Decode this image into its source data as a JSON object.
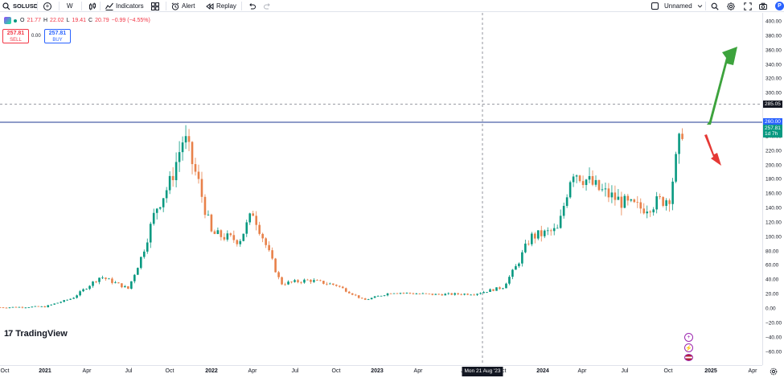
{
  "toolbar": {
    "symbol": "SOLUSD",
    "interval": "W",
    "indicators_label": "Indicators",
    "alert_label": "Alert",
    "replay_label": "Replay",
    "layout_name": "Unnamed"
  },
  "legend": {
    "open_label": "O",
    "open": "21.77",
    "high_label": "H",
    "high": "22.02",
    "low_label": "L",
    "low": "19.41",
    "close_label": "C",
    "close": "20.79",
    "change": "−0.99 (−4.55%)"
  },
  "trade": {
    "sell_price": "257.81",
    "sell_label": "SELL",
    "spread": "0.00",
    "buy_price": "257.81",
    "buy_label": "BUY"
  },
  "price_axis": {
    "ticks": [
      "400.00",
      "380.00",
      "360.00",
      "340.00",
      "320.00",
      "300.00",
      "240.00",
      "220.00",
      "200.00",
      "180.00",
      "160.00",
      "140.00",
      "120.00",
      "100.00",
      "80.00",
      "60.00",
      "40.00",
      "20.00",
      "0.00",
      "−20.00",
      "−40.00",
      "−60.00"
    ],
    "crosshair_price": "285.05",
    "line_price": "260.00",
    "last_price": "257.81",
    "countdown": "1d 7h"
  },
  "time_axis": {
    "ticks": [
      "Oct",
      "2021",
      "Apr",
      "Jul",
      "Oct",
      "2022",
      "Apr",
      "Jul",
      "Oct",
      "2023",
      "Apr",
      "Ju",
      "Oct",
      "2024",
      "Apr",
      "Jul",
      "Oct",
      "2025",
      "Apr"
    ],
    "cursor_label": "Mon 21 Aug '23"
  },
  "branding": {
    "logo_text": "TradingView"
  },
  "colors": {
    "up": "#089981",
    "down": "#e8814a",
    "horizontal_line": "#1f3a93",
    "arrow_up": "#3da33d",
    "arrow_down": "#e53935"
  },
  "chart_data": {
    "type": "candlestick",
    "symbol": "SOLUSD",
    "interval": "W",
    "ylim": [
      -60,
      400
    ],
    "close_series_approx": [
      {
        "date": "2020-10",
        "value": 2
      },
      {
        "date": "2021-01",
        "value": 3
      },
      {
        "date": "2021-03",
        "value": 15
      },
      {
        "date": "2021-05",
        "value": 45
      },
      {
        "date": "2021-07",
        "value": 28
      },
      {
        "date": "2021-08",
        "value": 75
      },
      {
        "date": "2021-09",
        "value": 140
      },
      {
        "date": "2021-10",
        "value": 175
      },
      {
        "date": "2021-11",
        "value": 240
      },
      {
        "date": "2021-12",
        "value": 180
      },
      {
        "date": "2022-01",
        "value": 105
      },
      {
        "date": "2022-03",
        "value": 95
      },
      {
        "date": "2022-04",
        "value": 135
      },
      {
        "date": "2022-06",
        "value": 35
      },
      {
        "date": "2022-08",
        "value": 40
      },
      {
        "date": "2022-10",
        "value": 33
      },
      {
        "date": "2022-12",
        "value": 12
      },
      {
        "date": "2023-02",
        "value": 23
      },
      {
        "date": "2023-05",
        "value": 20
      },
      {
        "date": "2023-08",
        "value": 21
      },
      {
        "date": "2023-10",
        "value": 30
      },
      {
        "date": "2023-11",
        "value": 60
      },
      {
        "date": "2023-12",
        "value": 100
      },
      {
        "date": "2024-02",
        "value": 110
      },
      {
        "date": "2024-03",
        "value": 195
      },
      {
        "date": "2024-05",
        "value": 165
      },
      {
        "date": "2024-07",
        "value": 145
      },
      {
        "date": "2024-08",
        "value": 140
      },
      {
        "date": "2024-10",
        "value": 155
      },
      {
        "date": "2024-11",
        "value": 257.81
      }
    ],
    "horizontal_lines": [
      260,
      285.05
    ]
  }
}
